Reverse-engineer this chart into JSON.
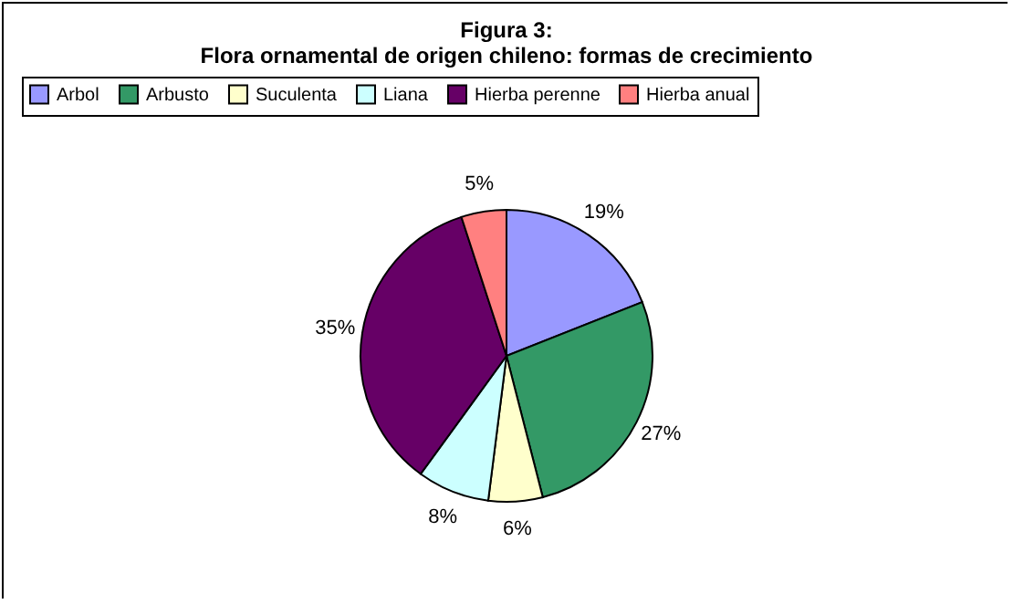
{
  "chart_data": {
    "type": "pie",
    "title": "Figura 3:\nFlora ornamental de origen chileno: formas de crecimiento",
    "categories": [
      "Arbol",
      "Arbusto",
      "Suculenta",
      "Liana",
      "Hierba perenne",
      "Hierba anual"
    ],
    "values": [
      19,
      27,
      6,
      8,
      35,
      5
    ],
    "value_labels": [
      "19%",
      "27%",
      "6%",
      "8%",
      "35%",
      "5%"
    ],
    "colors": [
      "#9999ff",
      "#339966",
      "#ffffcc",
      "#ccffff",
      "#660066",
      "#ff8080"
    ],
    "legend": "top"
  }
}
